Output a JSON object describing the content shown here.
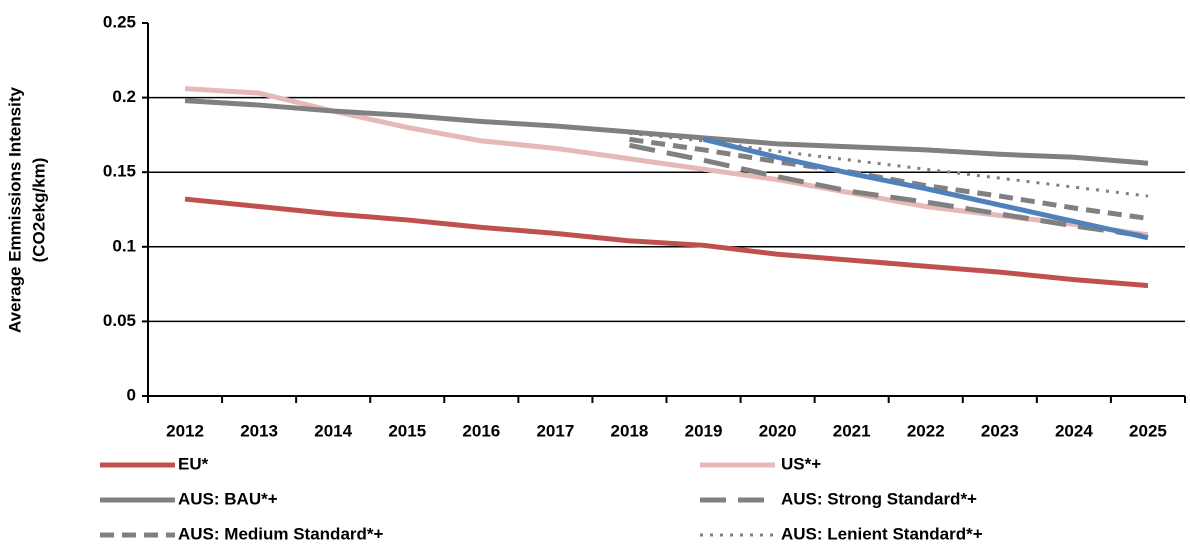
{
  "chart_data": {
    "type": "line",
    "ylabel": [
      "Average Emmissions Intensity",
      "(CO2ekg/km)"
    ],
    "categories": [
      "2012",
      "2013",
      "2014",
      "2015",
      "2016",
      "2017",
      "2018",
      "2019",
      "2020",
      "2021",
      "2022",
      "2023",
      "2024",
      "2025"
    ],
    "ylim": [
      0,
      0.25
    ],
    "yticks": [
      0,
      0.05,
      0.1,
      0.15,
      0.2,
      0.25
    ],
    "grid": true,
    "series": [
      {
        "name": "EU*",
        "color": "#c0504d",
        "dash": "solid",
        "values": [
          0.132,
          0.127,
          0.122,
          0.118,
          0.113,
          0.109,
          0.104,
          0.101,
          0.095,
          0.091,
          0.087,
          0.083,
          0.078,
          0.074
        ]
      },
      {
        "name": "US*+",
        "color": "#e6b9b8",
        "dash": "solid",
        "values": [
          0.206,
          0.203,
          0.191,
          0.18,
          0.171,
          0.166,
          0.159,
          0.152,
          0.145,
          0.136,
          0.127,
          0.121,
          0.115,
          0.108
        ]
      },
      {
        "name": "AUS: BAU*+",
        "color": "#808080",
        "dash": "solid",
        "values": [
          0.198,
          0.195,
          0.191,
          0.188,
          0.184,
          0.181,
          0.177,
          0.173,
          0.169,
          0.167,
          0.165,
          0.162,
          0.16,
          0.156
        ]
      },
      {
        "name": "AUS: Strong Standard*+",
        "color": "#808080",
        "dash": "longdash",
        "values": [
          null,
          null,
          null,
          null,
          null,
          null,
          0.168,
          0.158,
          0.147,
          0.137,
          0.13,
          0.122,
          0.114,
          0.107
        ]
      },
      {
        "name": "AUS: Medium Standard*+",
        "color": "#808080",
        "dash": "dash",
        "values": [
          null,
          null,
          null,
          null,
          null,
          null,
          0.172,
          0.165,
          0.157,
          0.15,
          0.141,
          0.134,
          0.126,
          0.119
        ]
      },
      {
        "name": "AUS: Lenient Standard*+",
        "color": "#808080",
        "dash": "dot",
        "values": [
          null,
          null,
          null,
          null,
          null,
          null,
          0.176,
          0.171,
          0.164,
          0.158,
          0.152,
          0.146,
          0.14,
          0.134
        ]
      },
      {
        "color": "#4f81bd",
        "dash": "solid",
        "values": [
          null,
          null,
          null,
          null,
          null,
          null,
          null,
          0.172,
          0.16,
          0.149,
          0.139,
          0.128,
          0.117,
          0.106
        ]
      }
    ]
  }
}
